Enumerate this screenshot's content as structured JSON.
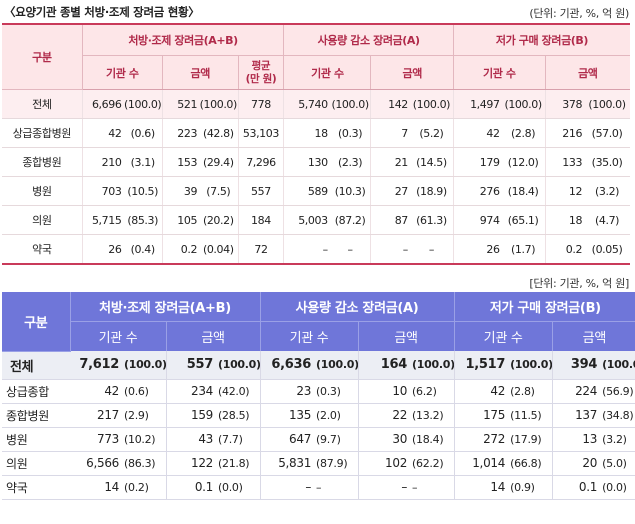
{
  "table1": {
    "caption": "〈요양기관 종별 처방·조제 장려금 현황〉",
    "unit": "(단위: 기관, %, 억 원)",
    "group_header": "구분",
    "groups": [
      "처방·조제 장려금(A+B)",
      "사용량 감소 장려금(A)",
      "저가 구매 장려금(B)"
    ],
    "subheaders": [
      "기관 수",
      "금액",
      "평균\n(만 원)",
      "기관 수",
      "금액",
      "기관 수",
      "금액"
    ],
    "rows": [
      {
        "label": "전체",
        "cells": [
          "6,696",
          "(100.0)",
          "521",
          "(100.0)",
          "778",
          "5,740",
          "(100.0)",
          "142",
          "(100.0)",
          "1,497",
          "(100.0)",
          "378",
          "(100.0)"
        ]
      },
      {
        "label": "상급종합병원",
        "cells": [
          "42",
          "(0.6)",
          "223",
          "(42.8)",
          "53,103",
          "18",
          "(0.3)",
          "7",
          "(5.2)",
          "42",
          "(2.8)",
          "216",
          "(57.0)"
        ]
      },
      {
        "label": "종합병원",
        "cells": [
          "210",
          "(3.1)",
          "153",
          "(29.4)",
          "7,296",
          "130",
          "(2.3)",
          "21",
          "(14.5)",
          "179",
          "(12.0)",
          "133",
          "(35.0)"
        ]
      },
      {
        "label": "병원",
        "cells": [
          "703",
          "(10.5)",
          "39",
          "(7.5)",
          "557",
          "589",
          "(10.3)",
          "27",
          "(18.9)",
          "276",
          "(18.4)",
          "12",
          "(3.2)"
        ]
      },
      {
        "label": "의원",
        "cells": [
          "5,715",
          "(85.3)",
          "105",
          "(20.2)",
          "184",
          "5,003",
          "(87.2)",
          "87",
          "(61.3)",
          "974",
          "(65.1)",
          "18",
          "(4.7)"
        ]
      },
      {
        "label": "약국",
        "cells": [
          "26",
          "(0.4)",
          "0.2",
          "(0.04)",
          "72",
          "–",
          "–",
          "–",
          "–",
          "26",
          "(1.7)",
          "0.2",
          "(0.05)"
        ]
      }
    ]
  },
  "table2": {
    "unit": "[단위: 기관, %, 억 원]",
    "group_header": "구분",
    "groups": [
      "처방·조제 장려금(A+B)",
      "사용량 감소 장려금(A)",
      "저가 구매 장려금(B)"
    ],
    "subheaders": [
      "기관 수",
      "금액",
      "기관 수",
      "금액",
      "기관 수",
      "금액"
    ],
    "rows": [
      {
        "label": "전체",
        "cells": [
          "7,612",
          "(100.0)",
          "557",
          "(100.0)",
          "6,636",
          "(100.0)",
          "164",
          "(100.0)",
          "1,517",
          "(100.0)",
          "394",
          "(100.0)"
        ]
      },
      {
        "label": "상급종합",
        "cells": [
          "42",
          "(0.6)",
          "234",
          "(42.0)",
          "23",
          "(0.3)",
          "10",
          "(6.2)",
          "42",
          "(2.8)",
          "224",
          "(56.9)"
        ]
      },
      {
        "label": "종합병원",
        "cells": [
          "217",
          "(2.9)",
          "159",
          "(28.5)",
          "135",
          "(2.0)",
          "22",
          "(13.2)",
          "175",
          "(11.5)",
          "137",
          "(34.8)"
        ]
      },
      {
        "label": "병원",
        "cells": [
          "773",
          "(10.2)",
          "43",
          "(7.7)",
          "647",
          "(9.7)",
          "30",
          "(18.4)",
          "272",
          "(17.9)",
          "13",
          "(3.2)"
        ]
      },
      {
        "label": "의원",
        "cells": [
          "6,566",
          "(86.3)",
          "122",
          "(21.8)",
          "5,831",
          "(87.9)",
          "102",
          "(62.2)",
          "1,014",
          "(66.8)",
          "20",
          "(5.0)"
        ]
      },
      {
        "label": "약국",
        "cells": [
          "14",
          "(0.2)",
          "0.1",
          "(0.0)",
          "–",
          "–",
          "–",
          "–",
          "14",
          "(0.9)",
          "0.1",
          "(0.0)"
        ]
      }
    ]
  }
}
